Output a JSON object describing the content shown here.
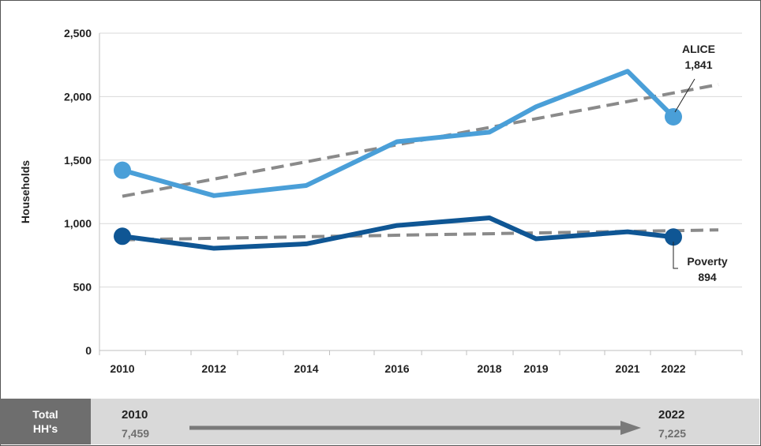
{
  "chart_data": {
    "type": "line",
    "ylabel": "Households",
    "ylim": [
      0,
      2500
    ],
    "yticks": [
      0,
      500,
      1000,
      1500,
      2000,
      2500
    ],
    "x": [
      2010,
      2012,
      2014,
      2016,
      2018,
      2019,
      2021,
      2022
    ],
    "x_tick_labels": [
      "2010",
      "2012",
      "2014",
      "2016",
      "2018",
      "2019",
      "2021",
      "2022"
    ],
    "y_tick_labels": [
      "0",
      "500",
      "1,000",
      "1,500",
      "2,000",
      "2,500"
    ],
    "grid": true,
    "series": [
      {
        "name": "ALICE",
        "color": "#4a9fd8",
        "values": [
          1420,
          1220,
          1300,
          1645,
          1720,
          1920,
          2200,
          1841
        ]
      },
      {
        "name": "Poverty",
        "color": "#0f5694",
        "values": [
          900,
          805,
          840,
          985,
          1045,
          880,
          935,
          894
        ]
      }
    ],
    "trendlines": [
      {
        "series": "ALICE",
        "color": "#8a8a8a",
        "x": [
          2010,
          2023
        ],
        "y": [
          1215,
          2095
        ]
      },
      {
        "series": "Poverty",
        "color": "#8a8a8a",
        "x": [
          2010,
          2023
        ],
        "y": [
          872,
          950
        ]
      }
    ],
    "annotations": [
      {
        "series": "ALICE",
        "label": "ALICE",
        "value": "1,841"
      },
      {
        "series": "Poverty",
        "label": "Poverty",
        "value": "894"
      }
    ]
  },
  "total_bar": {
    "label_line1": "Total",
    "label_line2": "HH's",
    "start_year": "2010",
    "start_value": "7,459",
    "end_year": "2022",
    "end_value": "7,225"
  }
}
